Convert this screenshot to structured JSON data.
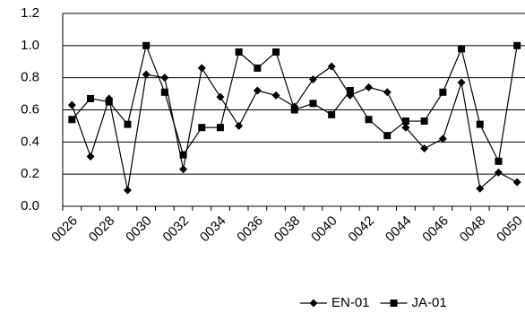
{
  "chart_data": {
    "type": "line",
    "categories": [
      "0026",
      null,
      "0028",
      null,
      "0030",
      null,
      "0032",
      null,
      "0034",
      null,
      "0036",
      null,
      "0038",
      null,
      "0040",
      null,
      "0042",
      null,
      "0044",
      null,
      "0046",
      null,
      "0048",
      null,
      "0050"
    ],
    "series": [
      {
        "name": "EN-01",
        "color": "#000000",
        "marker": "diamond",
        "values": [
          0.63,
          0.31,
          0.67,
          0.1,
          0.82,
          0.8,
          0.23,
          0.86,
          0.68,
          0.5,
          0.72,
          0.69,
          0.62,
          0.79,
          0.87,
          0.69,
          0.74,
          0.71,
          0.49,
          0.36,
          0.42,
          0.77,
          0.11,
          0.21,
          0.15
        ]
      },
      {
        "name": "JA-01",
        "color": "#000000",
        "marker": "square",
        "values": [
          0.54,
          0.67,
          0.65,
          0.51,
          1.0,
          0.71,
          0.32,
          0.49,
          0.49,
          0.96,
          0.86,
          0.96,
          0.6,
          0.64,
          0.57,
          0.72,
          0.54,
          0.44,
          0.53,
          0.53,
          0.71,
          0.98,
          0.51,
          0.28,
          1.0
        ]
      }
    ],
    "ylim": [
      0,
      1.2
    ],
    "yticks": [
      {
        "value": 0,
        "label": "0.0"
      },
      0.2,
      0.4,
      0.6,
      0.8,
      {
        "value": 1.0,
        "label": "1.0"
      },
      1.2
    ],
    "grid": true,
    "legend": "bottom"
  }
}
